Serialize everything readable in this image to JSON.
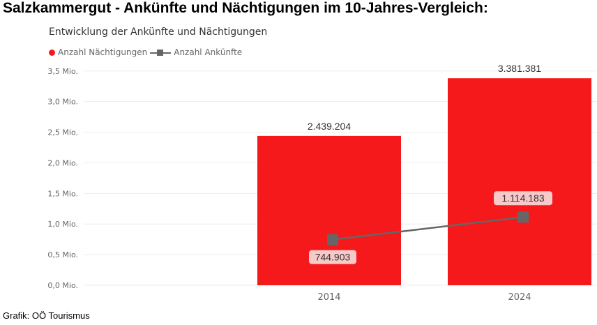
{
  "page_title": "Salzkammergut - Ankünfte und Nächtigungen im 10-Jahres-Vergleich:",
  "source": "Grafik: OÖ Tourismus",
  "colors": {
    "bar": "#f5191c",
    "line": "#666666",
    "grid": "#eeeeee",
    "label_box": "#f7c9c9"
  },
  "chart_data": {
    "type": "bar",
    "title": "Entwicklung der Ankünfte und Nächtigungen",
    "xlabel": "",
    "ylabel": "",
    "categories": [
      "2014",
      "2024"
    ],
    "ylim": [
      0,
      3600000
    ],
    "y_ticks": [
      0,
      500000,
      1000000,
      1500000,
      2000000,
      2500000,
      3000000,
      3500000
    ],
    "y_tick_labels": [
      "0,0 Mio.",
      "0,5 Mio.",
      "1,0 Mio.",
      "1,5 Mio.",
      "2,0 Mio.",
      "2,5 Mio.",
      "3,0 Mio.",
      "3,5 Mio."
    ],
    "grid": true,
    "legend_position": "top-left",
    "series": [
      {
        "name": "Anzahl Nächtigungen",
        "kind": "bar",
        "values": [
          2439204,
          3381381
        ],
        "labels": [
          "2.439.204",
          "3.381.381"
        ]
      },
      {
        "name": "Anzahl Ankünfte",
        "kind": "line",
        "values": [
          744903,
          1114183
        ],
        "labels": [
          "744.903",
          "1.114.183"
        ]
      }
    ]
  }
}
